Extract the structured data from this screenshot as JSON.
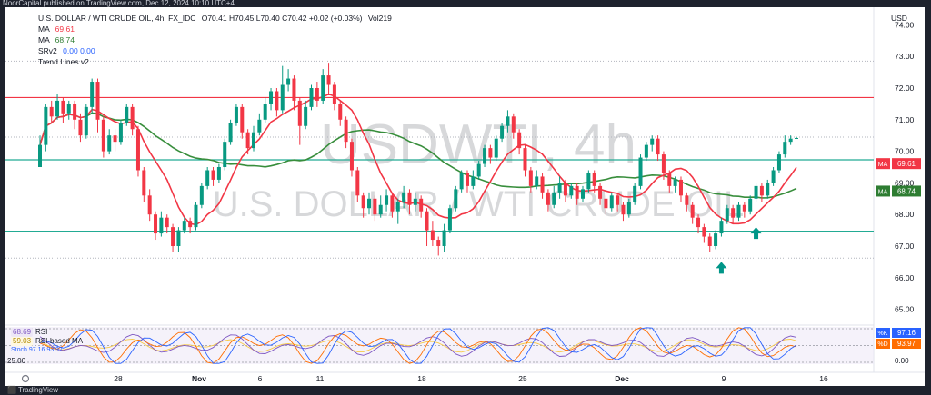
{
  "header": {
    "publish_note": "NoorCapital published on TradingView.com, Dec 12, 2024 10:10 UTC+4"
  },
  "legend": {
    "symbol_title": "U.S. DOLLAR / WTI CRUDE OIL, 4h, FX_IDC",
    "ohlc": "O70.41 H70.45 L70.40 C70.42 +0.02 (+0.03%)",
    "volume": "Vol219",
    "ma1_label": "MA",
    "ma1_value": "69.61",
    "ma2_label": "MA",
    "ma2_value": "68.74",
    "srv2_label": "SRv2",
    "srv2_values": "0.00  0.00",
    "trend_label": "Trend Lines v2"
  },
  "currency": "USD",
  "watermark": {
    "main": "USDWTI, 4h",
    "sub": "U.S. DOLLAR / WTI CRUDE OIL"
  },
  "oscillator_legend": {
    "rsi_value": "68.69",
    "rsi_label": "RSI",
    "rsi_ma_value": "59.03",
    "rsi_ma_label": "RSI-based MA",
    "stoch_label": "Stoch",
    "stoch_values": "97.16  93.97",
    "oscillator_level": "25.00",
    "oscillator_bottom": "0.00"
  },
  "price_badges": [
    {
      "label": "MA",
      "value": "69.61",
      "color": "#f23645"
    },
    {
      "label": "MA",
      "value": "68.74",
      "color": "#2e7d32"
    }
  ],
  "osc_badges": [
    {
      "label": "%K",
      "value": "97.16",
      "color": "#2962ff"
    },
    {
      "label": "%D",
      "value": "93.97",
      "color": "#ff6d00"
    }
  ],
  "footer": {
    "logo_text": "TradingView"
  },
  "chart_data": {
    "type": "candlestick",
    "x_labels": [
      "28",
      "Nov",
      "6",
      "11",
      "18",
      "25",
      "Dec",
      "9",
      "16"
    ],
    "y_ticks": [
      74.0,
      73.0,
      72.0,
      71.0,
      70.0,
      69.0,
      68.0,
      67.0,
      66.0,
      65.0
    ],
    "ylim": [
      64.5,
      74.5
    ],
    "horizontal_levels": [
      {
        "value": 72.85,
        "style": "dotted",
        "color": "#b2b5be"
      },
      {
        "value": 71.7,
        "style": "solid",
        "color": "#f23645"
      },
      {
        "value": 70.45,
        "style": "dotted",
        "color": "#b2b5be"
      },
      {
        "value": 69.73,
        "style": "solid",
        "color": "#22ab94"
      },
      {
        "value": 67.47,
        "style": "solid",
        "color": "#22ab94"
      },
      {
        "value": 66.62,
        "style": "dotted",
        "color": "#b2b5be"
      }
    ],
    "markers": [
      {
        "type": "arrow-up",
        "index": 118,
        "price": 66.5,
        "color": "#009688"
      },
      {
        "type": "arrow-up",
        "index": 124,
        "price": 67.6,
        "color": "#009688"
      }
    ],
    "candles": [
      [
        69.5,
        70.2,
        69.5,
        70.5
      ],
      [
        70.2,
        71.4,
        70.0,
        71.5
      ],
      [
        71.4,
        71.1,
        70.9,
        71.6
      ],
      [
        71.1,
        71.6,
        71.0,
        71.8
      ],
      [
        71.6,
        71.2,
        70.9,
        71.7
      ],
      [
        71.2,
        71.5,
        71.0,
        71.6
      ],
      [
        71.5,
        71.0,
        70.7,
        71.6
      ],
      [
        71.0,
        70.5,
        70.3,
        71.2
      ],
      [
        70.5,
        71.4,
        70.4,
        71.5
      ],
      [
        71.4,
        72.2,
        71.2,
        72.3
      ],
      [
        72.2,
        71.0,
        70.6,
        72.3
      ],
      [
        71.0,
        70.0,
        69.8,
        71.1
      ],
      [
        70.0,
        70.5,
        69.9,
        70.7
      ],
      [
        70.5,
        70.3,
        70.0,
        70.7
      ],
      [
        70.3,
        70.9,
        70.2,
        71.0
      ],
      [
        70.9,
        71.4,
        70.8,
        71.5
      ],
      [
        71.4,
        70.7,
        70.5,
        71.5
      ],
      [
        70.7,
        69.4,
        69.2,
        70.8
      ],
      [
        69.4,
        68.6,
        68.4,
        69.5
      ],
      [
        68.6,
        68.0,
        67.8,
        68.8
      ],
      [
        68.0,
        67.4,
        67.2,
        68.1
      ],
      [
        67.4,
        67.9,
        67.3,
        68.1
      ],
      [
        67.9,
        67.6,
        67.4,
        68.0
      ],
      [
        67.6,
        67.0,
        66.8,
        67.7
      ],
      [
        67.0,
        67.5,
        66.8,
        67.6
      ],
      [
        67.5,
        67.8,
        67.4,
        67.9
      ],
      [
        67.8,
        67.6,
        67.4,
        67.9
      ],
      [
        67.6,
        68.3,
        67.5,
        68.4
      ],
      [
        68.3,
        68.9,
        68.2,
        69.0
      ],
      [
        68.9,
        69.4,
        68.8,
        69.5
      ],
      [
        69.4,
        69.1,
        68.9,
        69.5
      ],
      [
        69.1,
        69.5,
        69.0,
        69.6
      ],
      [
        69.5,
        70.3,
        69.4,
        70.4
      ],
      [
        70.3,
        70.9,
        70.2,
        71.0
      ],
      [
        70.9,
        71.4,
        70.8,
        71.5
      ],
      [
        71.4,
        70.6,
        70.4,
        71.5
      ],
      [
        70.6,
        70.1,
        69.9,
        70.7
      ],
      [
        70.1,
        70.6,
        70.0,
        70.8
      ],
      [
        70.6,
        71.0,
        70.5,
        71.2
      ],
      [
        71.0,
        71.5,
        70.9,
        71.7
      ],
      [
        71.5,
        71.9,
        71.3,
        72.0
      ],
      [
        71.9,
        71.3,
        71.1,
        72.0
      ],
      [
        71.3,
        72.1,
        71.2,
        72.7
      ],
      [
        72.1,
        72.3,
        71.9,
        72.6
      ],
      [
        72.3,
        71.6,
        71.3,
        72.4
      ],
      [
        71.6,
        70.8,
        70.2,
        71.7
      ],
      [
        70.8,
        71.4,
        70.7,
        71.6
      ],
      [
        71.4,
        72.0,
        71.3,
        72.1
      ],
      [
        72.0,
        71.6,
        71.4,
        72.2
      ],
      [
        71.6,
        72.4,
        71.5,
        72.6
      ],
      [
        72.4,
        72.1,
        71.8,
        72.8
      ],
      [
        72.1,
        71.5,
        71.3,
        72.2
      ],
      [
        71.5,
        71.0,
        70.8,
        71.6
      ],
      [
        71.0,
        70.3,
        70.1,
        71.1
      ],
      [
        70.3,
        69.4,
        69.2,
        70.4
      ],
      [
        69.4,
        68.6,
        68.4,
        69.5
      ],
      [
        68.6,
        68.2,
        67.9,
        68.7
      ],
      [
        68.2,
        68.5,
        68.0,
        68.7
      ],
      [
        68.5,
        68.0,
        67.8,
        68.6
      ],
      [
        68.0,
        68.3,
        67.9,
        68.6
      ],
      [
        68.3,
        68.6,
        68.1,
        68.8
      ],
      [
        68.6,
        68.1,
        67.9,
        68.7
      ],
      [
        68.1,
        68.4,
        67.7,
        68.5
      ],
      [
        68.4,
        68.7,
        68.2,
        68.9
      ],
      [
        68.7,
        68.3,
        68.0,
        68.8
      ],
      [
        68.3,
        68.5,
        68.1,
        68.7
      ],
      [
        68.5,
        68.1,
        67.9,
        68.6
      ],
      [
        68.1,
        67.5,
        67.0,
        68.2
      ],
      [
        67.5,
        67.2,
        67.0,
        67.8
      ],
      [
        67.2,
        67.0,
        66.7,
        67.3
      ],
      [
        67.0,
        67.5,
        66.8,
        67.7
      ],
      [
        67.5,
        68.2,
        67.4,
        68.3
      ],
      [
        68.2,
        68.8,
        68.1,
        68.9
      ],
      [
        68.8,
        69.3,
        68.7,
        69.4
      ],
      [
        69.3,
        68.9,
        68.7,
        69.4
      ],
      [
        68.9,
        69.2,
        68.8,
        69.4
      ],
      [
        69.2,
        69.6,
        69.1,
        69.7
      ],
      [
        69.6,
        70.1,
        69.5,
        70.2
      ],
      [
        70.1,
        69.8,
        69.6,
        70.2
      ],
      [
        69.8,
        70.4,
        69.7,
        70.5
      ],
      [
        70.4,
        70.8,
        70.3,
        70.9
      ],
      [
        70.8,
        71.1,
        70.6,
        71.3
      ],
      [
        71.1,
        70.6,
        70.4,
        71.2
      ],
      [
        70.6,
        70.1,
        69.9,
        70.7
      ],
      [
        70.1,
        69.4,
        69.2,
        70.2
      ],
      [
        69.4,
        68.9,
        68.7,
        69.5
      ],
      [
        68.9,
        69.2,
        68.8,
        69.4
      ],
      [
        69.2,
        68.7,
        68.5,
        69.3
      ],
      [
        68.7,
        68.3,
        68.1,
        68.8
      ],
      [
        68.3,
        68.7,
        68.2,
        68.9
      ],
      [
        68.7,
        69.0,
        68.5,
        69.2
      ],
      [
        69.0,
        68.6,
        68.4,
        69.1
      ],
      [
        68.6,
        68.9,
        68.5,
        69.0
      ],
      [
        68.9,
        68.5,
        68.3,
        69.0
      ],
      [
        68.5,
        68.8,
        68.4,
        68.9
      ],
      [
        68.8,
        69.3,
        68.7,
        69.4
      ],
      [
        69.3,
        68.9,
        68.7,
        69.4
      ],
      [
        68.9,
        68.5,
        68.3,
        69.0
      ],
      [
        68.5,
        68.2,
        68.0,
        68.6
      ],
      [
        68.2,
        68.6,
        68.1,
        68.7
      ],
      [
        68.6,
        68.3,
        68.1,
        68.7
      ],
      [
        68.3,
        68.0,
        67.8,
        68.4
      ],
      [
        68.0,
        68.4,
        67.9,
        68.5
      ],
      [
        68.4,
        68.9,
        68.3,
        69.0
      ],
      [
        68.9,
        69.8,
        68.8,
        69.9
      ],
      [
        69.8,
        70.2,
        69.7,
        70.3
      ],
      [
        70.2,
        70.4,
        70.0,
        70.5
      ],
      [
        70.4,
        69.9,
        69.7,
        70.5
      ],
      [
        69.9,
        69.3,
        69.1,
        70.0
      ],
      [
        69.3,
        68.9,
        68.7,
        69.4
      ],
      [
        68.9,
        69.1,
        68.7,
        69.2
      ],
      [
        69.1,
        68.6,
        68.4,
        69.2
      ],
      [
        68.6,
        68.3,
        68.1,
        68.7
      ],
      [
        68.3,
        67.9,
        67.7,
        68.4
      ],
      [
        67.9,
        67.6,
        67.4,
        68.0
      ],
      [
        67.6,
        67.3,
        67.1,
        67.7
      ],
      [
        67.3,
        67.0,
        66.8,
        67.4
      ],
      [
        67.0,
        67.4,
        66.9,
        67.5
      ],
      [
        67.4,
        67.8,
        67.3,
        67.9
      ],
      [
        67.8,
        68.2,
        67.7,
        68.3
      ],
      [
        68.2,
        67.9,
        67.7,
        68.3
      ],
      [
        67.9,
        68.3,
        67.8,
        68.4
      ],
      [
        68.3,
        68.1,
        67.9,
        68.4
      ],
      [
        68.1,
        68.5,
        68.0,
        68.6
      ],
      [
        68.5,
        68.9,
        68.4,
        69.0
      ],
      [
        68.9,
        68.6,
        68.4,
        69.0
      ],
      [
        68.6,
        69.0,
        68.5,
        69.1
      ],
      [
        69.0,
        69.4,
        68.9,
        69.5
      ],
      [
        69.4,
        69.9,
        69.3,
        70.0
      ],
      [
        69.9,
        70.3,
        69.8,
        70.5
      ],
      [
        70.3,
        70.4,
        70.2,
        70.5
      ],
      [
        70.4,
        70.42,
        70.4,
        70.45
      ]
    ]
  }
}
